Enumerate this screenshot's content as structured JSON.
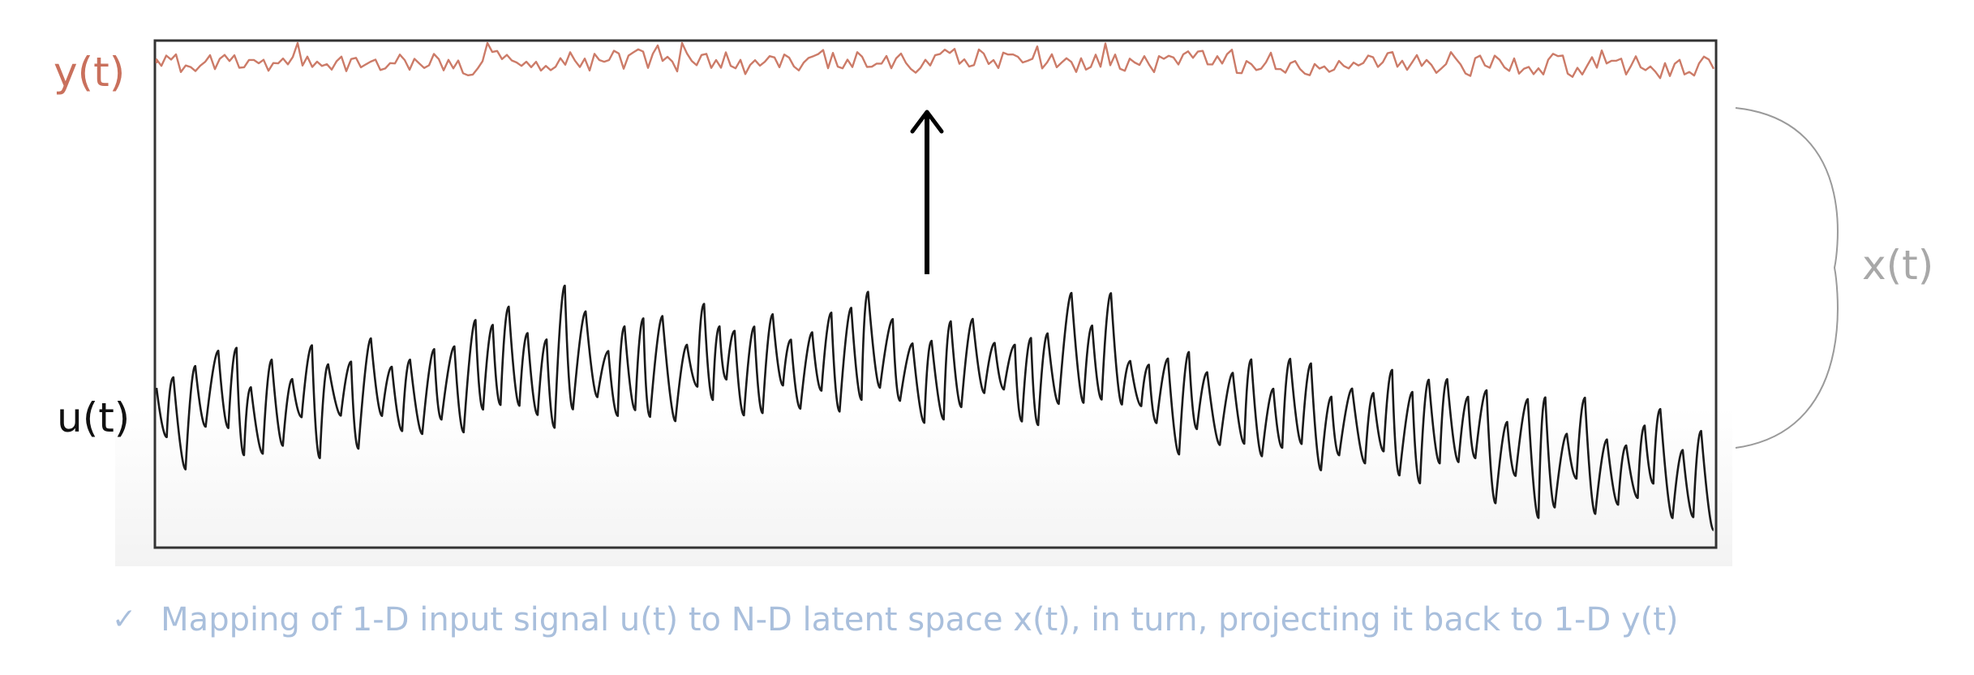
{
  "labels": {
    "output": "y(t)",
    "input": "u(t)",
    "latent": "x(t)"
  },
  "caption": {
    "check_icon": "✓",
    "text": "Mapping of 1-D input signal u(t) to N-D latent space x(t), in turn, projecting it back to 1-D y(t)"
  },
  "icons": {
    "caption_bullet": "check-icon",
    "mapping_arrow": "up-arrow-icon",
    "latent_brace": "right-brace-icon"
  },
  "colors": {
    "output_signal": "#cc7b68",
    "output_label": "#c9705c",
    "input_signal": "#1a1a1a",
    "input_label": "#111111",
    "latent_label": "#a8a8a8",
    "brace": "#9a9a9a",
    "frame": "#333333",
    "arrow": "#000000",
    "caption": "#a9bfdc"
  }
}
